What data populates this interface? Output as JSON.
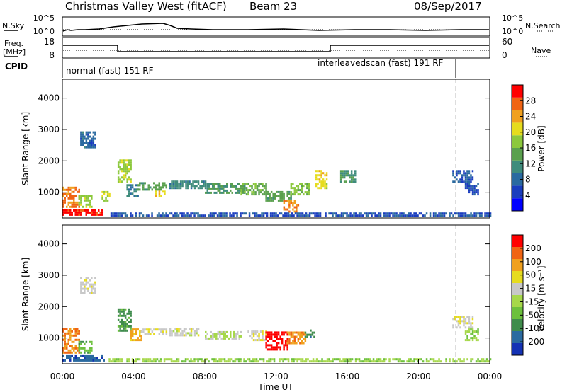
{
  "header": {
    "title": "Christmas Valley West (fitACF)",
    "beam": "Beam 23",
    "date": "08/Sep/2017"
  },
  "panels": {
    "nsky": {
      "left_label": "N.Sky",
      "right_label": "N.Search",
      "left_ticks": [
        "10^5",
        "10^0"
      ],
      "right_ticks": [
        "10^5",
        "10^0"
      ]
    },
    "freq": {
      "left_label_1": "Freq.",
      "left_label_2": "[MHz]",
      "right_label": "Nave",
      "left_ticks": [
        "18",
        "8"
      ],
      "right_ticks": [
        "60",
        "0"
      ]
    },
    "cpid": {
      "label": "CPID",
      "mode_1": "normal (fast) 151 RF",
      "mode_2": "interleavedscan (fast) 191 RF"
    }
  },
  "colorbars": {
    "power": {
      "label": "Power [dB]",
      "ticks": [
        "28",
        "24",
        "20",
        "16",
        "12",
        "8",
        "4"
      ],
      "colors": [
        "#0000ff",
        "#1a3dbe",
        "#2a6aa0",
        "#3f8c7c",
        "#5aa04e",
        "#8cc83c",
        "#e6dc1e",
        "#f0a01e",
        "#f06414",
        "#ff0000"
      ]
    },
    "velocity": {
      "label": "Velocity [m s⁻¹]",
      "ticks": [
        "200",
        "100",
        "50",
        "15",
        "-15",
        "-50",
        "-100",
        "-200"
      ],
      "colors": [
        "#1432b4",
        "#2a6aa0",
        "#3f8c4c",
        "#6cc03c",
        "#a6d84a",
        "#c8c8c8",
        "#e6dc1e",
        "#f0a01e",
        "#f06414",
        "#ff0000"
      ]
    }
  },
  "chart_data": [
    {
      "type": "heatmap",
      "name": "power",
      "ylabel": "Slant Range [km]",
      "ylim": [
        180,
        4600
      ],
      "yticks": [
        1000,
        2000,
        3000,
        4000
      ],
      "xlim": [
        0,
        24
      ],
      "clim": [
        0,
        32
      ],
      "regions": [
        {
          "t0": 0.0,
          "t1": 2.3,
          "r0": 250,
          "r1": 420,
          "v": 30
        },
        {
          "t0": 0.0,
          "t1": 0.9,
          "r0": 500,
          "r1": 1150,
          "v": 26
        },
        {
          "t0": 0.9,
          "t1": 1.6,
          "r0": 500,
          "r1": 900,
          "v": 18
        },
        {
          "t0": 2.1,
          "t1": 2.6,
          "r0": 700,
          "r1": 1000,
          "v": 20
        },
        {
          "t0": 1.0,
          "t1": 1.8,
          "r0": 2400,
          "r1": 2900,
          "v": 8
        },
        {
          "t0": 3.1,
          "t1": 3.8,
          "r0": 1300,
          "r1": 2000,
          "v": 18
        },
        {
          "t0": 3.6,
          "t1": 4.2,
          "r0": 850,
          "r1": 1200,
          "v": 10
        },
        {
          "t0": 4.2,
          "t1": 5.8,
          "r0": 1050,
          "r1": 1300,
          "v": 14
        },
        {
          "t0": 5.2,
          "t1": 5.8,
          "r0": 850,
          "r1": 1050,
          "v": 22
        },
        {
          "t0": 6.0,
          "t1": 8.0,
          "r0": 1100,
          "r1": 1350,
          "v": 11
        },
        {
          "t0": 8.0,
          "t1": 10.2,
          "r0": 950,
          "r1": 1250,
          "v": 13
        },
        {
          "t0": 10.0,
          "t1": 11.4,
          "r0": 900,
          "r1": 1250,
          "v": 16
        },
        {
          "t0": 11.4,
          "t1": 12.8,
          "r0": 700,
          "r1": 1000,
          "v": 14
        },
        {
          "t0": 12.4,
          "t1": 13.2,
          "r0": 350,
          "r1": 700,
          "v": 26
        },
        {
          "t0": 12.8,
          "t1": 13.8,
          "r0": 900,
          "r1": 1300,
          "v": 17
        },
        {
          "t0": 14.2,
          "t1": 14.8,
          "r0": 1100,
          "r1": 1650,
          "v": 21
        },
        {
          "t0": 15.6,
          "t1": 16.4,
          "r0": 1300,
          "r1": 1700,
          "v": 12
        },
        {
          "t0": 21.9,
          "t1": 23.0,
          "r0": 1300,
          "r1": 1700,
          "v": 7
        },
        {
          "t0": 22.6,
          "t1": 23.3,
          "r0": 900,
          "r1": 1250,
          "v": 6
        },
        {
          "t0": 2.6,
          "t1": 24.0,
          "r0": 220,
          "r1": 350,
          "v": 6
        }
      ]
    },
    {
      "type": "heatmap",
      "name": "velocity",
      "ylabel": "Slant Range [km]",
      "xlabel": "Time UT",
      "ylim": [
        180,
        4600
      ],
      "yticks": [
        1000,
        2000,
        3000,
        4000
      ],
      "xlim": [
        0,
        24
      ],
      "xticks": [
        "00:00",
        "04:00",
        "08:00",
        "12:00",
        "16:00",
        "20:00",
        "00:00"
      ],
      "clim": [
        -250,
        250
      ],
      "regions": [
        {
          "t0": 0.0,
          "t1": 2.3,
          "r0": 250,
          "r1": 420,
          "v": -180
        },
        {
          "t0": 0.0,
          "t1": 0.9,
          "r0": 500,
          "r1": 1300,
          "v": 150
        },
        {
          "t0": 0.9,
          "t1": 1.6,
          "r0": 500,
          "r1": 900,
          "v": -80
        },
        {
          "t0": 1.0,
          "t1": 1.8,
          "r0": 2400,
          "r1": 2900,
          "v": 30
        },
        {
          "t0": 3.1,
          "t1": 3.8,
          "r0": 1200,
          "r1": 1900,
          "v": -120
        },
        {
          "t0": 3.8,
          "t1": 4.4,
          "r0": 900,
          "r1": 1300,
          "v": 120
        },
        {
          "t0": 4.4,
          "t1": 5.8,
          "r0": 1100,
          "r1": 1300,
          "v": 40
        },
        {
          "t0": 6.0,
          "t1": 7.6,
          "r0": 1050,
          "r1": 1300,
          "v": 25
        },
        {
          "t0": 8.0,
          "t1": 10.0,
          "r0": 950,
          "r1": 1200,
          "v": 0
        },
        {
          "t0": 10.4,
          "t1": 11.4,
          "r0": 900,
          "r1": 1200,
          "v": 45
        },
        {
          "t0": 11.4,
          "t1": 12.6,
          "r0": 600,
          "r1": 1150,
          "v": 230
        },
        {
          "t0": 12.6,
          "t1": 13.6,
          "r0": 800,
          "r1": 1200,
          "v": 140
        },
        {
          "t0": 13.6,
          "t1": 14.1,
          "r0": 1000,
          "r1": 1250,
          "v": -140
        },
        {
          "t0": 21.9,
          "t1": 23.0,
          "r0": 1300,
          "r1": 1700,
          "v": 40
        },
        {
          "t0": 22.6,
          "t1": 23.3,
          "r0": 900,
          "r1": 1250,
          "v": -40
        },
        {
          "t0": 2.6,
          "t1": 24.0,
          "r0": 220,
          "r1": 350,
          "v": -40
        }
      ]
    }
  ]
}
